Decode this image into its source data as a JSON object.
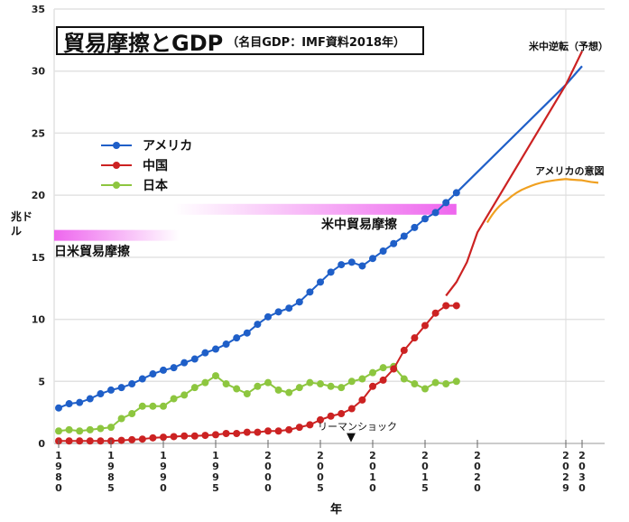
{
  "title": {
    "main": "貿易摩擦とGDP",
    "sub": "（名目GDP：IMF資料2018年）"
  },
  "chart_data": {
    "type": "line",
    "title": "貿易摩擦とGDP（名目GDP：IMF資料2018年）",
    "xlabel": "年",
    "ylabel": "兆ドル",
    "ylim": [
      0,
      35
    ],
    "yticks": [
      0,
      5,
      10,
      15,
      20,
      25,
      30,
      35
    ],
    "xticks": [
      1980,
      1985,
      1990,
      1995,
      2000,
      2005,
      2010,
      2015,
      2020,
      2029,
      2030
    ],
    "grid": "horizontal",
    "legend": "upper-left",
    "series": [
      {
        "name": "アメリカ",
        "color": "#1f5fc8",
        "markers": true,
        "x": [
          1980,
          1981,
          1982,
          1983,
          1984,
          1985,
          1986,
          1987,
          1988,
          1989,
          1990,
          1991,
          1992,
          1993,
          1994,
          1995,
          1996,
          1997,
          1998,
          1999,
          2000,
          2001,
          2002,
          2003,
          2004,
          2005,
          2006,
          2007,
          2008,
          2009,
          2010,
          2011,
          2012,
          2013,
          2014,
          2015,
          2016,
          2017,
          2018
        ],
        "values": [
          2.86,
          3.2,
          3.3,
          3.6,
          4.0,
          4.3,
          4.5,
          4.8,
          5.2,
          5.6,
          5.9,
          6.1,
          6.5,
          6.8,
          7.3,
          7.6,
          8.0,
          8.5,
          8.9,
          9.6,
          10.2,
          10.6,
          10.9,
          11.4,
          12.2,
          13.0,
          13.8,
          14.4,
          14.6,
          14.3,
          14.9,
          15.5,
          16.1,
          16.7,
          17.4,
          18.1,
          18.6,
          19.4,
          20.2
        ]
      },
      {
        "name": "中国",
        "color": "#cc2222",
        "markers": true,
        "x": [
          1980,
          1981,
          1982,
          1983,
          1984,
          1985,
          1986,
          1987,
          1988,
          1989,
          1990,
          1991,
          1992,
          1993,
          1994,
          1995,
          1996,
          1997,
          1998,
          1999,
          2000,
          2001,
          2002,
          2003,
          2004,
          2005,
          2006,
          2007,
          2008,
          2009,
          2010,
          2011,
          2012,
          2013,
          2014,
          2015,
          2016,
          2017,
          2018
        ],
        "values": [
          0.2,
          0.2,
          0.2,
          0.2,
          0.2,
          0.2,
          0.25,
          0.3,
          0.35,
          0.45,
          0.5,
          0.55,
          0.6,
          0.6,
          0.65,
          0.7,
          0.8,
          0.8,
          0.9,
          0.9,
          1.0,
          1.0,
          1.1,
          1.3,
          1.5,
          1.9,
          2.2,
          2.4,
          2.8,
          3.5,
          4.6,
          5.1,
          6.0,
          7.5,
          8.5,
          9.5,
          10.5,
          11.1,
          11.1
        ]
      },
      {
        "name": "日本",
        "color": "#8dc63f",
        "markers": true,
        "x": [
          1980,
          1981,
          1982,
          1983,
          1984,
          1985,
          1986,
          1987,
          1988,
          1989,
          1990,
          1991,
          1992,
          1993,
          1994,
          1995,
          1996,
          1997,
          1998,
          1999,
          2000,
          2001,
          2002,
          2003,
          2004,
          2005,
          2006,
          2007,
          2008,
          2009,
          2010,
          2011,
          2012,
          2013,
          2014,
          2015,
          2016,
          2017,
          2018
        ],
        "values": [
          1.0,
          1.1,
          1.0,
          1.1,
          1.2,
          1.3,
          2.0,
          2.4,
          3.0,
          3.0,
          3.0,
          3.6,
          3.9,
          4.5,
          4.9,
          5.45,
          4.8,
          4.4,
          4.0,
          4.6,
          4.9,
          4.3,
          4.1,
          4.5,
          4.9,
          4.8,
          4.6,
          4.5,
          5.0,
          5.2,
          5.7,
          6.1,
          6.2,
          5.2,
          4.8,
          4.4,
          4.9,
          4.8,
          5.0
        ]
      },
      {
        "color": "#1f5fc8",
        "markers": false,
        "x": [
          2018,
          2029,
          2030
        ],
        "values": [
          20.2,
          28.9,
          30.4
        ]
      },
      {
        "color": "#cc2222",
        "markers": false,
        "x": [
          2017,
          2018,
          2019,
          2020,
          2029,
          2030
        ],
        "values": [
          11.9,
          13.0,
          14.6,
          17.0,
          28.9,
          31.6
        ]
      },
      {
        "color": "#f0a020",
        "markers": false,
        "x": [
          2021,
          2023,
          2025,
          2027,
          2029,
          2030,
          2031
        ],
        "values": [
          17.8,
          19.6,
          20.6,
          21.1,
          21.3,
          21.2,
          21.0
        ]
      }
    ],
    "annotations": {
      "japan_us_friction": {
        "text": "日米貿易摩擦",
        "from": 1980,
        "to": 1992,
        "color": "#ee66ee"
      },
      "us_china_friction": {
        "text": "米中貿易摩擦",
        "from": 1991,
        "to": 2018,
        "color": "#ee66ee"
      },
      "lehman": {
        "text": "リーマンショック",
        "year": 2008
      },
      "reversal": {
        "text": "米中逆転（予想）"
      },
      "us_intent": {
        "text": "アメリカの意図"
      }
    }
  }
}
